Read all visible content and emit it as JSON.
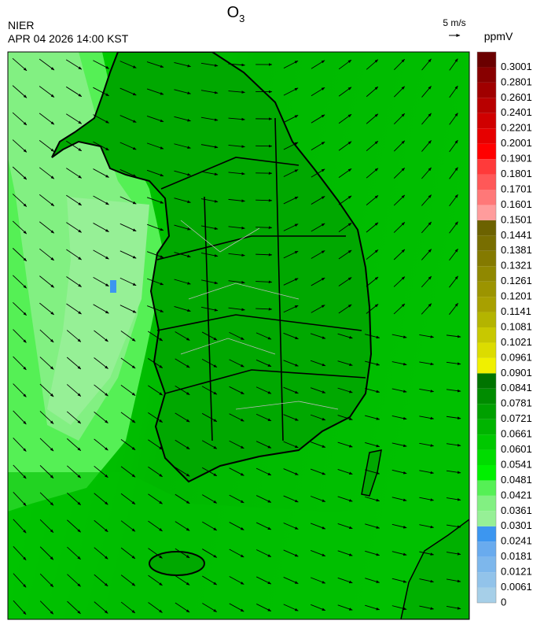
{
  "header": {
    "title": "O",
    "title_subscript": "3",
    "agency": "NIER",
    "timestamp": "APR 04 2026 14:00 KST",
    "wind_scale": "5 m/s"
  },
  "legend": {
    "unit": "ppmV",
    "levels": [
      0,
      0.0061,
      0.0121,
      0.0181,
      0.0241,
      0.0301,
      0.0361,
      0.0421,
      0.0481,
      0.0541,
      0.0601,
      0.0661,
      0.0721,
      0.0781,
      0.0841,
      0.0901,
      0.0961,
      0.1021,
      0.1081,
      0.1141,
      0.1201,
      0.1261,
      0.1321,
      0.1381,
      0.1441,
      0.1501,
      0.1601,
      0.1701,
      0.1801,
      0.1901,
      0.2001,
      0.2201,
      0.2401,
      0.2601,
      0.2801,
      0.3001
    ],
    "colors": [
      "#a6cfe8",
      "#92c3ea",
      "#7db7ec",
      "#69abee",
      "#3c96f0",
      "#96f096",
      "#82f082",
      "#55f055",
      "#00f000",
      "#00dc00",
      "#00c800",
      "#00b400",
      "#00a000",
      "#008c00",
      "#007400",
      "#f0f000",
      "#dcdc00",
      "#c8c800",
      "#b4b400",
      "#a8a000",
      "#9c9400",
      "#908800",
      "#847a00",
      "#786e00",
      "#6c6200",
      "#ff9c9c",
      "#ff7878",
      "#ff5858",
      "#ff3a3a",
      "#ff0000",
      "#e60000",
      "#d00000",
      "#b80000",
      "#a00000",
      "#880000",
      "#6a0000"
    ]
  }
}
